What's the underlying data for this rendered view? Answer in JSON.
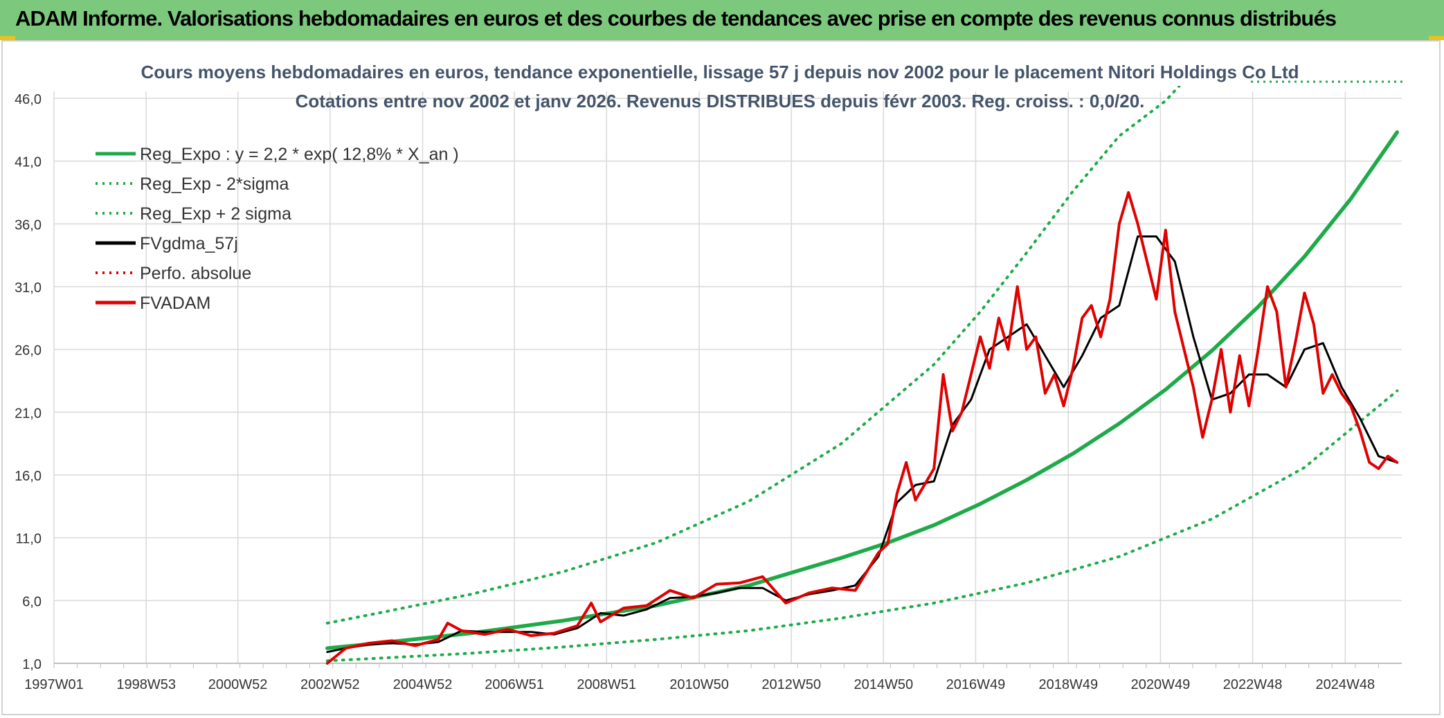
{
  "header": {
    "title": "ADAM Informe. Valorisations hebdomadaires en euros et des courbes de tendances avec prise en compte des revenus connus distribués"
  },
  "chart_data": {
    "type": "line",
    "title": "Cours moyens hebdomadaires en euros, tendance exponentielle, lissage 57 j depuis nov 2002 pour le placement Nitori Holdings Co Ltd",
    "subtitle": "Cotations entre nov 2002 et janv 2026. Revenus DISTRIBUES depuis févr 2003. Reg. croiss. : 0,0/20.",
    "xlabel": "",
    "ylabel": "",
    "xlim": [
      1997.0,
      2026.1
    ],
    "ylim": [
      1.0,
      46.0
    ],
    "x_ticks": [
      {
        "x": 1997.0,
        "label": "1997W01"
      },
      {
        "x": 1998.99,
        "label": "1998W53"
      },
      {
        "x": 2000.97,
        "label": "2000W52"
      },
      {
        "x": 2002.96,
        "label": "2002W52"
      },
      {
        "x": 2004.96,
        "label": "2004W52"
      },
      {
        "x": 2006.94,
        "label": "2006W51"
      },
      {
        "x": 2008.93,
        "label": "2008W51"
      },
      {
        "x": 2010.93,
        "label": "2010W50"
      },
      {
        "x": 2012.92,
        "label": "2012W50"
      },
      {
        "x": 2014.91,
        "label": "2014W50"
      },
      {
        "x": 2016.9,
        "label": "2016W49"
      },
      {
        "x": 2018.9,
        "label": "2018W49"
      },
      {
        "x": 2020.89,
        "label": "2020W49"
      },
      {
        "x": 2022.88,
        "label": "2022W48"
      },
      {
        "x": 2024.88,
        "label": "2024W48"
      }
    ],
    "y_ticks": [
      {
        "v": 1.0,
        "label": "1,0"
      },
      {
        "v": 6.0,
        "label": "6,0"
      },
      {
        "v": 11.0,
        "label": "11,0"
      },
      {
        "v": 16.0,
        "label": "16,0"
      },
      {
        "v": 21.0,
        "label": "21,0"
      },
      {
        "v": 26.0,
        "label": "26,0"
      },
      {
        "v": 31.0,
        "label": "31,0"
      },
      {
        "v": 36.0,
        "label": "36,0"
      },
      {
        "v": 41.0,
        "label": "41,0"
      },
      {
        "v": 46.0,
        "label": "46,0"
      }
    ],
    "legend": [
      {
        "name": "Reg_Expo : y = 2,2 * exp( 12,8% *  X_an )",
        "color": "#1faa4a",
        "style": "solid"
      },
      {
        "name": "Reg_Exp - 2*sigma",
        "color": "#1faa4a",
        "style": "dotted"
      },
      {
        "name": "Reg_Exp + 2 sigma",
        "color": "#1faa4a",
        "style": "dotted"
      },
      {
        "name": "FVgdma_57j",
        "color": "#000000",
        "style": "solid"
      },
      {
        "name": "Perfo. absolue",
        "color": "#e00000",
        "style": "dotted"
      },
      {
        "name": "FVADAM",
        "color": "#e00000",
        "style": "solid"
      }
    ],
    "series": [
      {
        "name": "Reg_Expo : y = 2,2 * exp( 12,8% *  X_an )",
        "x": [
          2002.9,
          2004,
          2006,
          2008,
          2010,
          2012,
          2014,
          2015,
          2016,
          2017,
          2018,
          2019,
          2020,
          2021,
          2022,
          2023,
          2024,
          2025,
          2026
        ],
        "y": [
          2.2,
          2.6,
          3.4,
          4.4,
          5.6,
          7.2,
          9.4,
          10.6,
          12.0,
          13.7,
          15.6,
          17.7,
          20.1,
          22.8,
          25.9,
          29.4,
          33.4,
          38.0,
          43.3
        ]
      },
      {
        "name": "Reg_Exp - 2*sigma",
        "x": [
          2002.9,
          2004,
          2006,
          2008,
          2010,
          2012,
          2014,
          2016,
          2018,
          2020,
          2022,
          2024,
          2026
        ],
        "y": [
          1.2,
          1.4,
          1.8,
          2.3,
          2.9,
          3.6,
          4.6,
          5.8,
          7.4,
          9.5,
          12.5,
          16.6,
          22.7
        ]
      },
      {
        "name": "Reg_Exp + 2 sigma",
        "x": [
          2002.9,
          2004,
          2006,
          2008,
          2010,
          2012,
          2014,
          2016,
          2017,
          2018,
          2019,
          2020,
          2021,
          2021.3
        ],
        "y": [
          4.2,
          5.0,
          6.5,
          8.3,
          10.6,
          13.9,
          18.5,
          24.8,
          29.0,
          33.7,
          38.6,
          43.0,
          45.8,
          47.0
        ]
      },
      {
        "name": "FVgdma_57j",
        "x": [
          2002.9,
          2003.3,
          2003.8,
          2004.3,
          2004.8,
          2005.3,
          2005.8,
          2006.3,
          2006.8,
          2007.3,
          2007.8,
          2008.3,
          2008.8,
          2009.3,
          2009.8,
          2010.3,
          2010.8,
          2011.3,
          2011.8,
          2012.3,
          2012.8,
          2013.3,
          2013.8,
          2014.3,
          2014.8,
          2015.2,
          2015.6,
          2016.0,
          2016.4,
          2016.8,
          2017.2,
          2017.6,
          2018.0,
          2018.4,
          2018.8,
          2019.2,
          2019.6,
          2020.0,
          2020.4,
          2020.8,
          2021.2,
          2021.6,
          2022.0,
          2022.4,
          2022.8,
          2023.2,
          2023.6,
          2024.0,
          2024.4,
          2024.8,
          2025.2,
          2025.6,
          2026.0
        ],
        "y": [
          1.9,
          2.2,
          2.5,
          2.6,
          2.5,
          2.7,
          3.6,
          3.5,
          3.5,
          3.5,
          3.3,
          3.8,
          5.0,
          4.8,
          5.3,
          6.2,
          6.3,
          6.6,
          7.0,
          7.0,
          6.0,
          6.5,
          6.8,
          7.2,
          9.5,
          13.8,
          15.2,
          15.5,
          20.0,
          22.0,
          26.0,
          27.0,
          28.0,
          25.5,
          23.0,
          25.5,
          28.5,
          29.5,
          35.0,
          35.0,
          33.0,
          27.0,
          22.0,
          22.5,
          24.0,
          24.0,
          23.0,
          26.0,
          26.5,
          23.0,
          20.5,
          17.5,
          17.0
        ]
      },
      {
        "name": "FVADAM",
        "x": [
          2002.9,
          2003.3,
          2003.8,
          2004.3,
          2004.8,
          2005.3,
          2005.5,
          2005.8,
          2006.3,
          2006.8,
          2007.3,
          2007.8,
          2008.3,
          2008.6,
          2008.8,
          2009.3,
          2009.8,
          2010.3,
          2010.8,
          2011.3,
          2011.8,
          2012.3,
          2012.8,
          2013.3,
          2013.8,
          2014.3,
          2014.8,
          2015.0,
          2015.2,
          2015.4,
          2015.6,
          2016.0,
          2016.2,
          2016.4,
          2016.6,
          2016.8,
          2017.0,
          2017.2,
          2017.4,
          2017.6,
          2017.8,
          2018.0,
          2018.2,
          2018.4,
          2018.6,
          2018.8,
          2019.0,
          2019.2,
          2019.4,
          2019.6,
          2019.8,
          2020.0,
          2020.2,
          2020.4,
          2020.6,
          2020.8,
          2021.0,
          2021.2,
          2021.4,
          2021.6,
          2021.8,
          2022.0,
          2022.2,
          2022.4,
          2022.6,
          2022.8,
          2023.0,
          2023.2,
          2023.4,
          2023.6,
          2023.8,
          2024.0,
          2024.2,
          2024.4,
          2024.6,
          2024.8,
          2025.0,
          2025.2,
          2025.4,
          2025.6,
          2025.8,
          2026.0
        ],
        "y": [
          1.0,
          2.2,
          2.6,
          2.8,
          2.4,
          2.9,
          4.2,
          3.6,
          3.3,
          3.7,
          3.2,
          3.4,
          4.0,
          5.8,
          4.3,
          5.4,
          5.6,
          6.8,
          6.2,
          7.3,
          7.4,
          7.9,
          5.8,
          6.6,
          7.0,
          6.8,
          9.8,
          10.5,
          14.5,
          17.0,
          14.0,
          16.5,
          24.0,
          19.5,
          21.0,
          24.0,
          27.0,
          24.5,
          28.5,
          26.0,
          31.0,
          26.0,
          27.0,
          22.5,
          24.0,
          21.5,
          24.5,
          28.5,
          29.5,
          27.0,
          30.0,
          36.0,
          38.5,
          36.0,
          33.0,
          30.0,
          35.5,
          29.0,
          26.0,
          23.0,
          19.0,
          22.0,
          26.0,
          21.0,
          25.5,
          21.5,
          26.0,
          31.0,
          29.0,
          23.0,
          26.5,
          30.5,
          28.0,
          22.5,
          24.0,
          22.5,
          21.5,
          19.5,
          17.0,
          16.5,
          17.5,
          17.0
        ]
      }
    ]
  }
}
